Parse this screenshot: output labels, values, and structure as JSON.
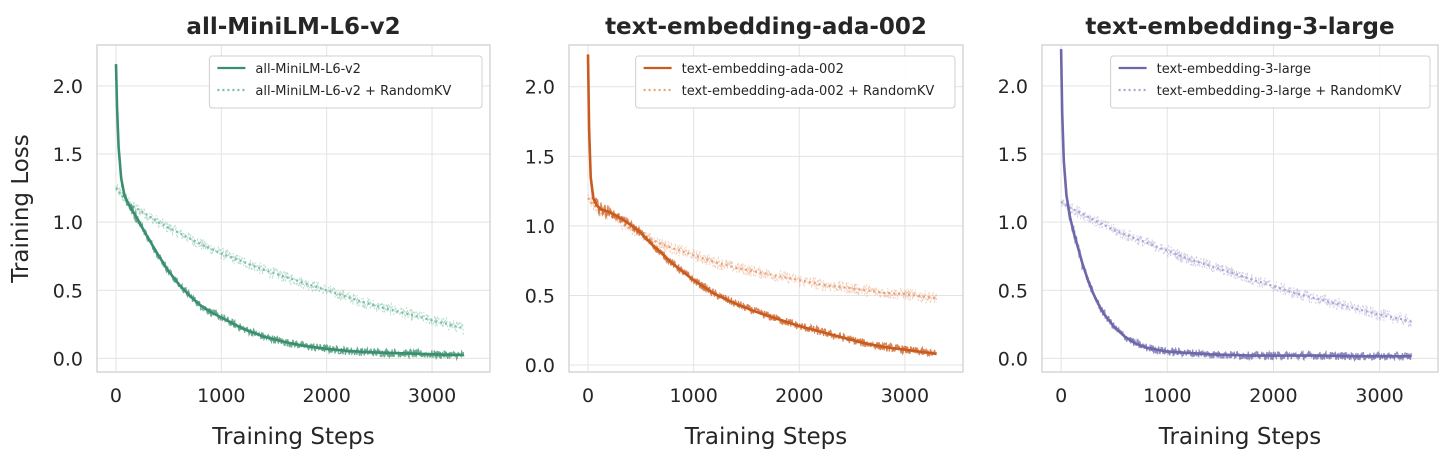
{
  "chart_data": [
    {
      "type": "line",
      "title": "all-MiniLM-L6-v2",
      "xlabel": "Training Steps",
      "ylabel": "Training Loss",
      "xlim": [
        -180,
        3550
      ],
      "ylim": [
        -0.1,
        2.3
      ],
      "xticks": [
        0,
        1000,
        2000,
        3000
      ],
      "xtick_labels": [
        "0",
        "1000",
        "2000",
        "3000"
      ],
      "yticks": [
        0.0,
        0.5,
        1.0,
        1.5,
        2.0
      ],
      "ytick_labels": [
        "0.0",
        "0.5",
        "1.0",
        "1.5",
        "2.0"
      ],
      "grid": true,
      "legend_position": "top-right",
      "color": "#3a8f6e",
      "color_light": "#7cc0a3",
      "series": [
        {
          "name": "all-MiniLM-L6-v2",
          "style": "solid",
          "x": [
            0,
            10,
            25,
            50,
            80,
            120,
            160,
            200,
            250,
            300,
            400,
            500,
            600,
            700,
            800,
            900,
            1000,
            1200,
            1400,
            1600,
            1800,
            2000,
            2200,
            2400,
            2600,
            2800,
            3000,
            3200,
            3300
          ],
          "y": [
            2.16,
            1.85,
            1.55,
            1.32,
            1.2,
            1.13,
            1.08,
            1.03,
            0.96,
            0.89,
            0.76,
            0.64,
            0.54,
            0.46,
            0.39,
            0.34,
            0.3,
            0.22,
            0.16,
            0.12,
            0.09,
            0.07,
            0.055,
            0.045,
            0.04,
            0.035,
            0.03,
            0.025,
            0.025
          ]
        },
        {
          "name": "all-MiniLM-L6-v2 + RandomKV",
          "style": "dotted",
          "x": [
            0,
            50,
            100,
            150,
            200,
            300,
            400,
            500,
            600,
            800,
            1000,
            1200,
            1400,
            1600,
            1800,
            2000,
            2200,
            2400,
            2600,
            2800,
            3000,
            3200,
            3300
          ],
          "y": [
            1.25,
            1.2,
            1.15,
            1.12,
            1.1,
            1.05,
            1.0,
            0.96,
            0.92,
            0.84,
            0.77,
            0.71,
            0.65,
            0.6,
            0.55,
            0.5,
            0.45,
            0.4,
            0.36,
            0.32,
            0.28,
            0.24,
            0.22
          ]
        }
      ]
    },
    {
      "type": "line",
      "title": "text-embedding-ada-002",
      "xlabel": "Training Steps",
      "ylabel": "",
      "xlim": [
        -180,
        3550
      ],
      "ylim": [
        -0.05,
        2.3
      ],
      "xticks": [
        0,
        1000,
        2000,
        3000
      ],
      "xtick_labels": [
        "0",
        "1000",
        "2000",
        "3000"
      ],
      "yticks": [
        0.0,
        0.5,
        1.0,
        1.5,
        2.0
      ],
      "ytick_labels": [
        "0.0",
        "0.5",
        "1.0",
        "1.5",
        "2.0"
      ],
      "grid": true,
      "legend_position": "top-right",
      "color": "#c95b1e",
      "color_light": "#e8a27a",
      "series": [
        {
          "name": "text-embedding-ada-002",
          "style": "solid",
          "x": [
            0,
            10,
            25,
            50,
            80,
            120,
            200,
            300,
            400,
            500,
            600,
            700,
            800,
            1000,
            1200,
            1400,
            1600,
            1800,
            2000,
            2200,
            2400,
            2600,
            2800,
            3000,
            3200,
            3300
          ],
          "y": [
            2.23,
            1.7,
            1.35,
            1.2,
            1.15,
            1.12,
            1.1,
            1.06,
            1.01,
            0.95,
            0.87,
            0.8,
            0.73,
            0.61,
            0.51,
            0.44,
            0.38,
            0.33,
            0.28,
            0.24,
            0.2,
            0.16,
            0.13,
            0.11,
            0.09,
            0.08
          ]
        },
        {
          "name": "text-embedding-ada-002 + RandomKV",
          "style": "dotted",
          "x": [
            0,
            50,
            100,
            200,
            300,
            400,
            500,
            600,
            800,
            1000,
            1200,
            1400,
            1600,
            1800,
            2000,
            2200,
            2400,
            2600,
            2800,
            3000,
            3200,
            3300
          ],
          "y": [
            1.2,
            1.15,
            1.12,
            1.08,
            1.03,
            0.98,
            0.94,
            0.9,
            0.84,
            0.79,
            0.74,
            0.7,
            0.67,
            0.64,
            0.61,
            0.58,
            0.56,
            0.54,
            0.52,
            0.51,
            0.49,
            0.48
          ]
        }
      ]
    },
    {
      "type": "line",
      "title": "text-embedding-3-large",
      "xlabel": "Training Steps",
      "ylabel": "",
      "xlim": [
        -180,
        3550
      ],
      "ylim": [
        -0.1,
        2.3
      ],
      "xticks": [
        0,
        1000,
        2000,
        3000
      ],
      "xtick_labels": [
        "0",
        "1000",
        "2000",
        "3000"
      ],
      "yticks": [
        0.0,
        0.5,
        1.0,
        1.5,
        2.0
      ],
      "ytick_labels": [
        "0.0",
        "0.5",
        "1.0",
        "1.5",
        "2.0"
      ],
      "grid": true,
      "legend_position": "top-right",
      "color": "#6c68aa",
      "color_light": "#a9a6d1",
      "series": [
        {
          "name": "text-embedding-3-large",
          "style": "solid",
          "x": [
            0,
            10,
            25,
            50,
            80,
            120,
            160,
            200,
            250,
            300,
            350,
            400,
            500,
            600,
            700,
            800,
            1000,
            1200,
            1400,
            1600,
            1800,
            2000,
            2400,
            2800,
            3200,
            3300
          ],
          "y": [
            2.27,
            1.8,
            1.45,
            1.2,
            1.05,
            0.92,
            0.81,
            0.7,
            0.58,
            0.48,
            0.4,
            0.33,
            0.23,
            0.16,
            0.11,
            0.08,
            0.05,
            0.04,
            0.03,
            0.025,
            0.02,
            0.02,
            0.02,
            0.015,
            0.015,
            0.015
          ]
        },
        {
          "name": "text-embedding-3-large + RandomKV",
          "style": "dotted",
          "x": [
            0,
            50,
            100,
            150,
            200,
            300,
            400,
            500,
            600,
            800,
            1000,
            1200,
            1400,
            1600,
            1800,
            2000,
            2200,
            2400,
            2600,
            2800,
            3000,
            3200,
            3300
          ],
          "y": [
            1.15,
            1.12,
            1.1,
            1.08,
            1.06,
            1.02,
            0.98,
            0.94,
            0.91,
            0.85,
            0.79,
            0.73,
            0.68,
            0.63,
            0.58,
            0.53,
            0.48,
            0.44,
            0.4,
            0.36,
            0.32,
            0.29,
            0.27
          ]
        }
      ]
    }
  ]
}
